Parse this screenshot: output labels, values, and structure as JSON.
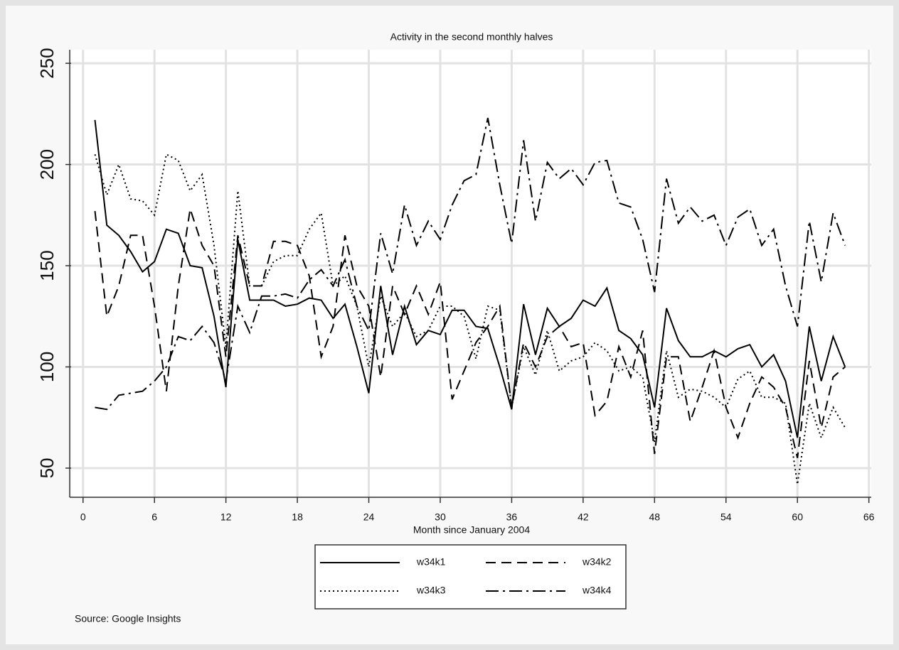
{
  "chart_data": {
    "type": "line",
    "title": "Activity in the second monthly halves",
    "x_label": "Month since January 2004",
    "source": "Source: Google Insights",
    "x": [
      1,
      2,
      3,
      4,
      5,
      6,
      7,
      8,
      9,
      10,
      11,
      12,
      13,
      14,
      15,
      16,
      17,
      18,
      19,
      20,
      21,
      22,
      23,
      24,
      25,
      26,
      27,
      28,
      29,
      30,
      31,
      32,
      33,
      34,
      35,
      36,
      37,
      38,
      39,
      40,
      41,
      42,
      43,
      44,
      45,
      46,
      47,
      48,
      49,
      50,
      51,
      52,
      53,
      54,
      55,
      56,
      57,
      58,
      59,
      60,
      61,
      62,
      63,
      64
    ],
    "series": [
      {
        "name": "w34k1",
        "color": "#000000",
        "dash": "solid",
        "values": [
          222,
          170,
          165,
          157,
          147,
          152,
          168,
          166,
          150,
          149,
          125,
          90,
          163,
          133,
          133,
          133,
          130,
          131,
          134,
          133,
          124,
          131,
          110,
          87,
          140,
          106,
          130,
          111,
          118,
          116,
          128,
          128,
          120,
          119,
          100,
          79,
          131,
          106,
          129,
          120,
          124,
          133,
          130,
          139,
          118,
          114,
          106,
          80,
          129,
          113,
          105,
          105,
          108,
          105,
          109,
          111,
          100,
          106,
          93,
          65,
          120,
          93,
          115,
          100
        ]
      },
      {
        "name": "w34k2",
        "color": "#000000",
        "dash": "dashed",
        "values": [
          177,
          125,
          140,
          165,
          165,
          130,
          88,
          140,
          178,
          160,
          150,
          105,
          165,
          140,
          140,
          162,
          162,
          160,
          145,
          105,
          120,
          165,
          140,
          130,
          95,
          140,
          126,
          140,
          126,
          142,
          84,
          98,
          112,
          120,
          130,
          80,
          112,
          100,
          115,
          120,
          110,
          112,
          76,
          83,
          110,
          95,
          118,
          57,
          105,
          105,
          73,
          90,
          108,
          80,
          65,
          82,
          95,
          90,
          80,
          55,
          103,
          70,
          95,
          100
        ]
      },
      {
        "name": "w34k3",
        "color": "#000000",
        "dash": "dotted",
        "values": [
          205,
          185,
          200,
          183,
          182,
          175,
          205,
          202,
          187,
          195,
          160,
          110,
          187,
          140,
          140,
          152,
          155,
          155,
          168,
          176,
          140,
          145,
          130,
          100,
          135,
          120,
          127,
          115,
          118,
          130,
          130,
          125,
          104,
          130,
          128,
          80,
          110,
          96,
          118,
          98,
          103,
          105,
          112,
          108,
          98,
          100,
          95,
          63,
          108,
          85,
          89,
          88,
          85,
          80,
          94,
          98,
          85,
          85,
          82,
          42,
          82,
          65,
          80,
          70
        ]
      },
      {
        "name": "w34k4",
        "color": "#000000",
        "dash": "dashdot",
        "values": [
          80,
          79,
          86,
          87,
          88,
          93,
          100,
          115,
          113,
          120,
          112,
          93,
          130,
          117,
          135,
          135,
          136,
          134,
          143,
          148,
          140,
          153,
          130,
          118,
          166,
          146,
          180,
          160,
          172,
          163,
          180,
          192,
          195,
          223,
          190,
          161,
          212,
          172,
          201,
          193,
          198,
          190,
          201,
          202,
          181,
          179,
          163,
          137,
          193,
          171,
          179,
          172,
          175,
          160,
          174,
          178,
          160,
          168,
          140,
          120,
          172,
          142,
          176,
          160
        ]
      }
    ],
    "xlim": [
      -1,
      66.2
    ],
    "xticks": [
      0,
      6,
      12,
      18,
      24,
      30,
      36,
      42,
      48,
      54,
      60,
      66
    ],
    "ylim": [
      35.6,
      256.7
    ],
    "yticks": [
      50,
      100,
      150,
      200,
      250
    ],
    "grid": true
  }
}
